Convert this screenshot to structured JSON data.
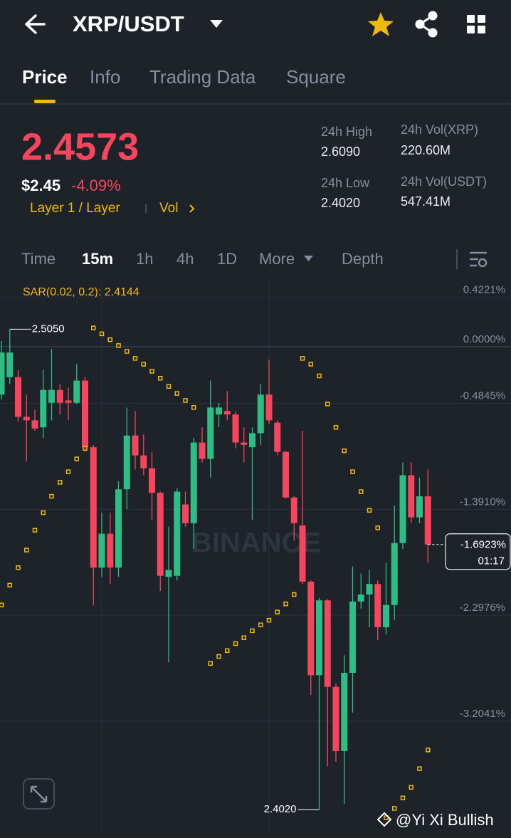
{
  "header": {
    "title": "XRP/USDT"
  },
  "tabs": [
    "Price",
    "Info",
    "Trading Data",
    "Square"
  ],
  "price": {
    "last": "2.4573",
    "usd": "$2.45",
    "change": "-4.09%",
    "tags": "Layer 1 / Layer",
    "vol": "Vol"
  },
  "stats": [
    {
      "label": "24h High",
      "value": "2.6090"
    },
    {
      "label": "24h Vol(XRP)",
      "value": "220.60M"
    },
    {
      "label": "24h Low",
      "value": "2.4020"
    },
    {
      "label": "24h Vol(USDT)",
      "value": "547.41M"
    }
  ],
  "intervals": [
    "Time",
    "15m",
    "1h",
    "4h",
    "1D",
    "More",
    "Depth"
  ],
  "watermark": "BINANCE",
  "credit": "@Yi Xi Bullish",
  "chart_data": {
    "type": "candlestick",
    "indicator_label": "SAR(0.02, 0.2): 2.4144",
    "up_color": "#2ebd85",
    "down_color": "#f6465d",
    "sar_color": "#f0b90b",
    "ylim": [
      -4.13,
      0.56
    ],
    "yticks": [
      {
        "value": 0.4221,
        "label": "0.4221%"
      },
      {
        "value": 0,
        "label": "0.0000%"
      },
      {
        "value": -0.4845,
        "label": "-0.4845%"
      },
      {
        "value": -1.391,
        "label": "-1.3910%"
      },
      {
        "value": -2.2976,
        "label": "-2.2976%"
      },
      {
        "value": -3.2041,
        "label": "-3.2041%"
      }
    ],
    "open": [
      -0.41,
      -0.26,
      -0.26,
      -0.6,
      -0.63,
      -0.69,
      -0.48,
      -0.37,
      -0.46,
      -0.48,
      -0.29,
      -0.86,
      -1.89,
      -1.6,
      -1.89,
      -1.22,
      -0.76,
      -0.93,
      -1.04,
      -1.25,
      -1.97,
      -1.96,
      -1.35,
      -1.51,
      -0.82,
      -0.96,
      -0.58,
      -0.55,
      -0.58,
      -0.82,
      -0.86,
      -0.74,
      -0.41,
      -0.65,
      -0.9,
      -1.29,
      -1.53,
      -2.01,
      -2.81,
      -2.17,
      -2.91,
      -3.46,
      -2.79,
      -2.18,
      -2.12,
      -2.03,
      -2.4,
      -2.21,
      -1.68,
      -1.1,
      -1.46,
      -1.28
    ],
    "high": [
      0.05,
      0.15,
      -0.2,
      -0.41,
      -0.54,
      -0.2,
      -0.02,
      -0.32,
      -0.35,
      -0.15,
      -0.26,
      -0.84,
      -1.42,
      -1.42,
      -1.15,
      -0.52,
      -0.55,
      -0.75,
      -0.9,
      -1.24,
      -1.54,
      -1.21,
      -1.24,
      -0.78,
      -0.69,
      -0.29,
      -0.48,
      -0.38,
      -0.55,
      -0.69,
      -0.69,
      -0.32,
      -0.11,
      -0.63,
      -0.89,
      -1.28,
      -0.72,
      -2.0,
      -2.15,
      -2.16,
      -2.88,
      -2.64,
      -1.88,
      -1.94,
      -1.91,
      -2.0,
      -1.85,
      -1.36,
      -0.99,
      -0.99,
      -1.12,
      -1.05
    ],
    "low": [
      -0.45,
      -0.32,
      -0.64,
      -0.98,
      -0.72,
      -0.78,
      -0.63,
      -0.58,
      -0.63,
      -0.49,
      -0.9,
      -2.21,
      -1.97,
      -2.03,
      -1.97,
      -1.39,
      -1.05,
      -1.1,
      -1.48,
      -2.09,
      -2.7,
      -2.0,
      -1.54,
      -1.73,
      -0.99,
      -1.12,
      -0.69,
      -0.63,
      -0.87,
      -0.99,
      -1.48,
      -0.84,
      -0.66,
      -0.93,
      -1.3,
      -1.66,
      -2.03,
      -2.98,
      -3.96,
      -3.59,
      -3.55,
      -3.91,
      -3.13,
      -2.24,
      -2.4,
      -2.51,
      -2.46,
      -2.34,
      -1.73,
      -1.51,
      -1.51,
      -1.85
    ],
    "close": [
      -0.05,
      -0.05,
      -0.6,
      -0.63,
      -0.7,
      -0.37,
      -0.37,
      -0.48,
      -0.48,
      -0.29,
      -0.86,
      -1.89,
      -1.6,
      -1.89,
      -1.22,
      -0.76,
      -0.93,
      -1.04,
      -1.25,
      -1.96,
      -1.91,
      -1.24,
      -1.51,
      -0.82,
      -0.96,
      -0.52,
      -0.52,
      -0.58,
      -0.82,
      -0.84,
      -0.74,
      -0.41,
      -0.63,
      -0.9,
      -1.29,
      -1.51,
      -2.01,
      -2.81,
      -2.17,
      -2.91,
      -3.46,
      -2.79,
      -2.18,
      -2.12,
      -2.03,
      -2.4,
      -2.21,
      -1.68,
      -1.1,
      -1.46,
      -1.28,
      -1.6923
    ],
    "sar_values": [
      -2.21,
      -2.04,
      -1.89,
      -1.74,
      -1.57,
      -1.42,
      -1.28,
      -1.16,
      -1.07,
      -0.96,
      -0.87,
      0.16,
      0.11,
      0.06,
      0.01,
      -0.04,
      -0.1,
      -0.15,
      -0.21,
      -0.27,
      -0.34,
      -0.4,
      -0.46,
      -0.52,
      null,
      -2.71,
      -2.65,
      -2.6,
      -2.54,
      -2.49,
      -2.43,
      -2.38,
      -2.34,
      -2.27,
      -2.2,
      -2.12,
      -0.1,
      -0.15,
      -0.25,
      -0.49,
      -0.69,
      -0.89,
      -1.07,
      -1.24,
      -1.4,
      -1.55,
      -4.03,
      -3.95,
      -3.86,
      -3.77,
      -3.61,
      -3.45
    ],
    "high_label": "2.5050",
    "low_label": "2.4020",
    "last_label": "-1.6923%",
    "countdown": "01:17"
  }
}
